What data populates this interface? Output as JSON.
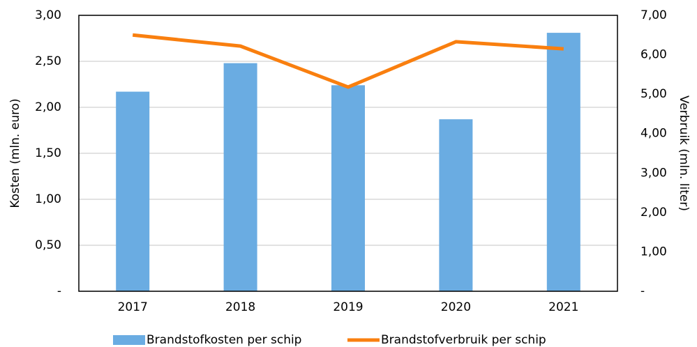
{
  "chart_data": {
    "type": "bar-line",
    "categories": [
      "2017",
      "2018",
      "2019",
      "2020",
      "2021"
    ],
    "series": [
      {
        "name": "Brandstofkosten per schip",
        "color": "#6aace2",
        "values": [
          2.17,
          2.48,
          2.24,
          1.87,
          2.81
        ]
      },
      {
        "name": "Brandstofverbruik per schip",
        "color": "#f97f0f",
        "axis": "y2",
        "values": [
          6.5,
          6.22,
          5.18,
          6.33,
          6.15
        ]
      }
    ],
    "ylabel": "Kosten (mln. euro)",
    "y2label": "Verbruik (mln. liter)",
    "ylim": [
      0,
      3
    ],
    "yticks": [
      {
        "value": 0,
        "label": "-"
      },
      {
        "value": 0.5,
        "label": "0,50"
      },
      {
        "value": 1,
        "label": "1,00"
      },
      {
        "value": 1.5,
        "label": "1,50"
      },
      {
        "value": 2,
        "label": "2,00"
      },
      {
        "value": 2.5,
        "label": "2,50"
      },
      {
        "value": 3,
        "label": "3,00"
      }
    ],
    "y2lim": [
      0,
      7
    ],
    "y2ticks": [
      {
        "value": 0,
        "label": "-"
      },
      {
        "value": 1,
        "label": "1,00"
      },
      {
        "value": 2,
        "label": "2,00"
      },
      {
        "value": 3,
        "label": "3,00"
      },
      {
        "value": 4,
        "label": "4,00"
      },
      {
        "value": 5,
        "label": "5,00"
      },
      {
        "value": 6,
        "label": "6,00"
      },
      {
        "value": 7,
        "label": "7,00"
      }
    ],
    "grid": true,
    "legend": "bottom"
  }
}
